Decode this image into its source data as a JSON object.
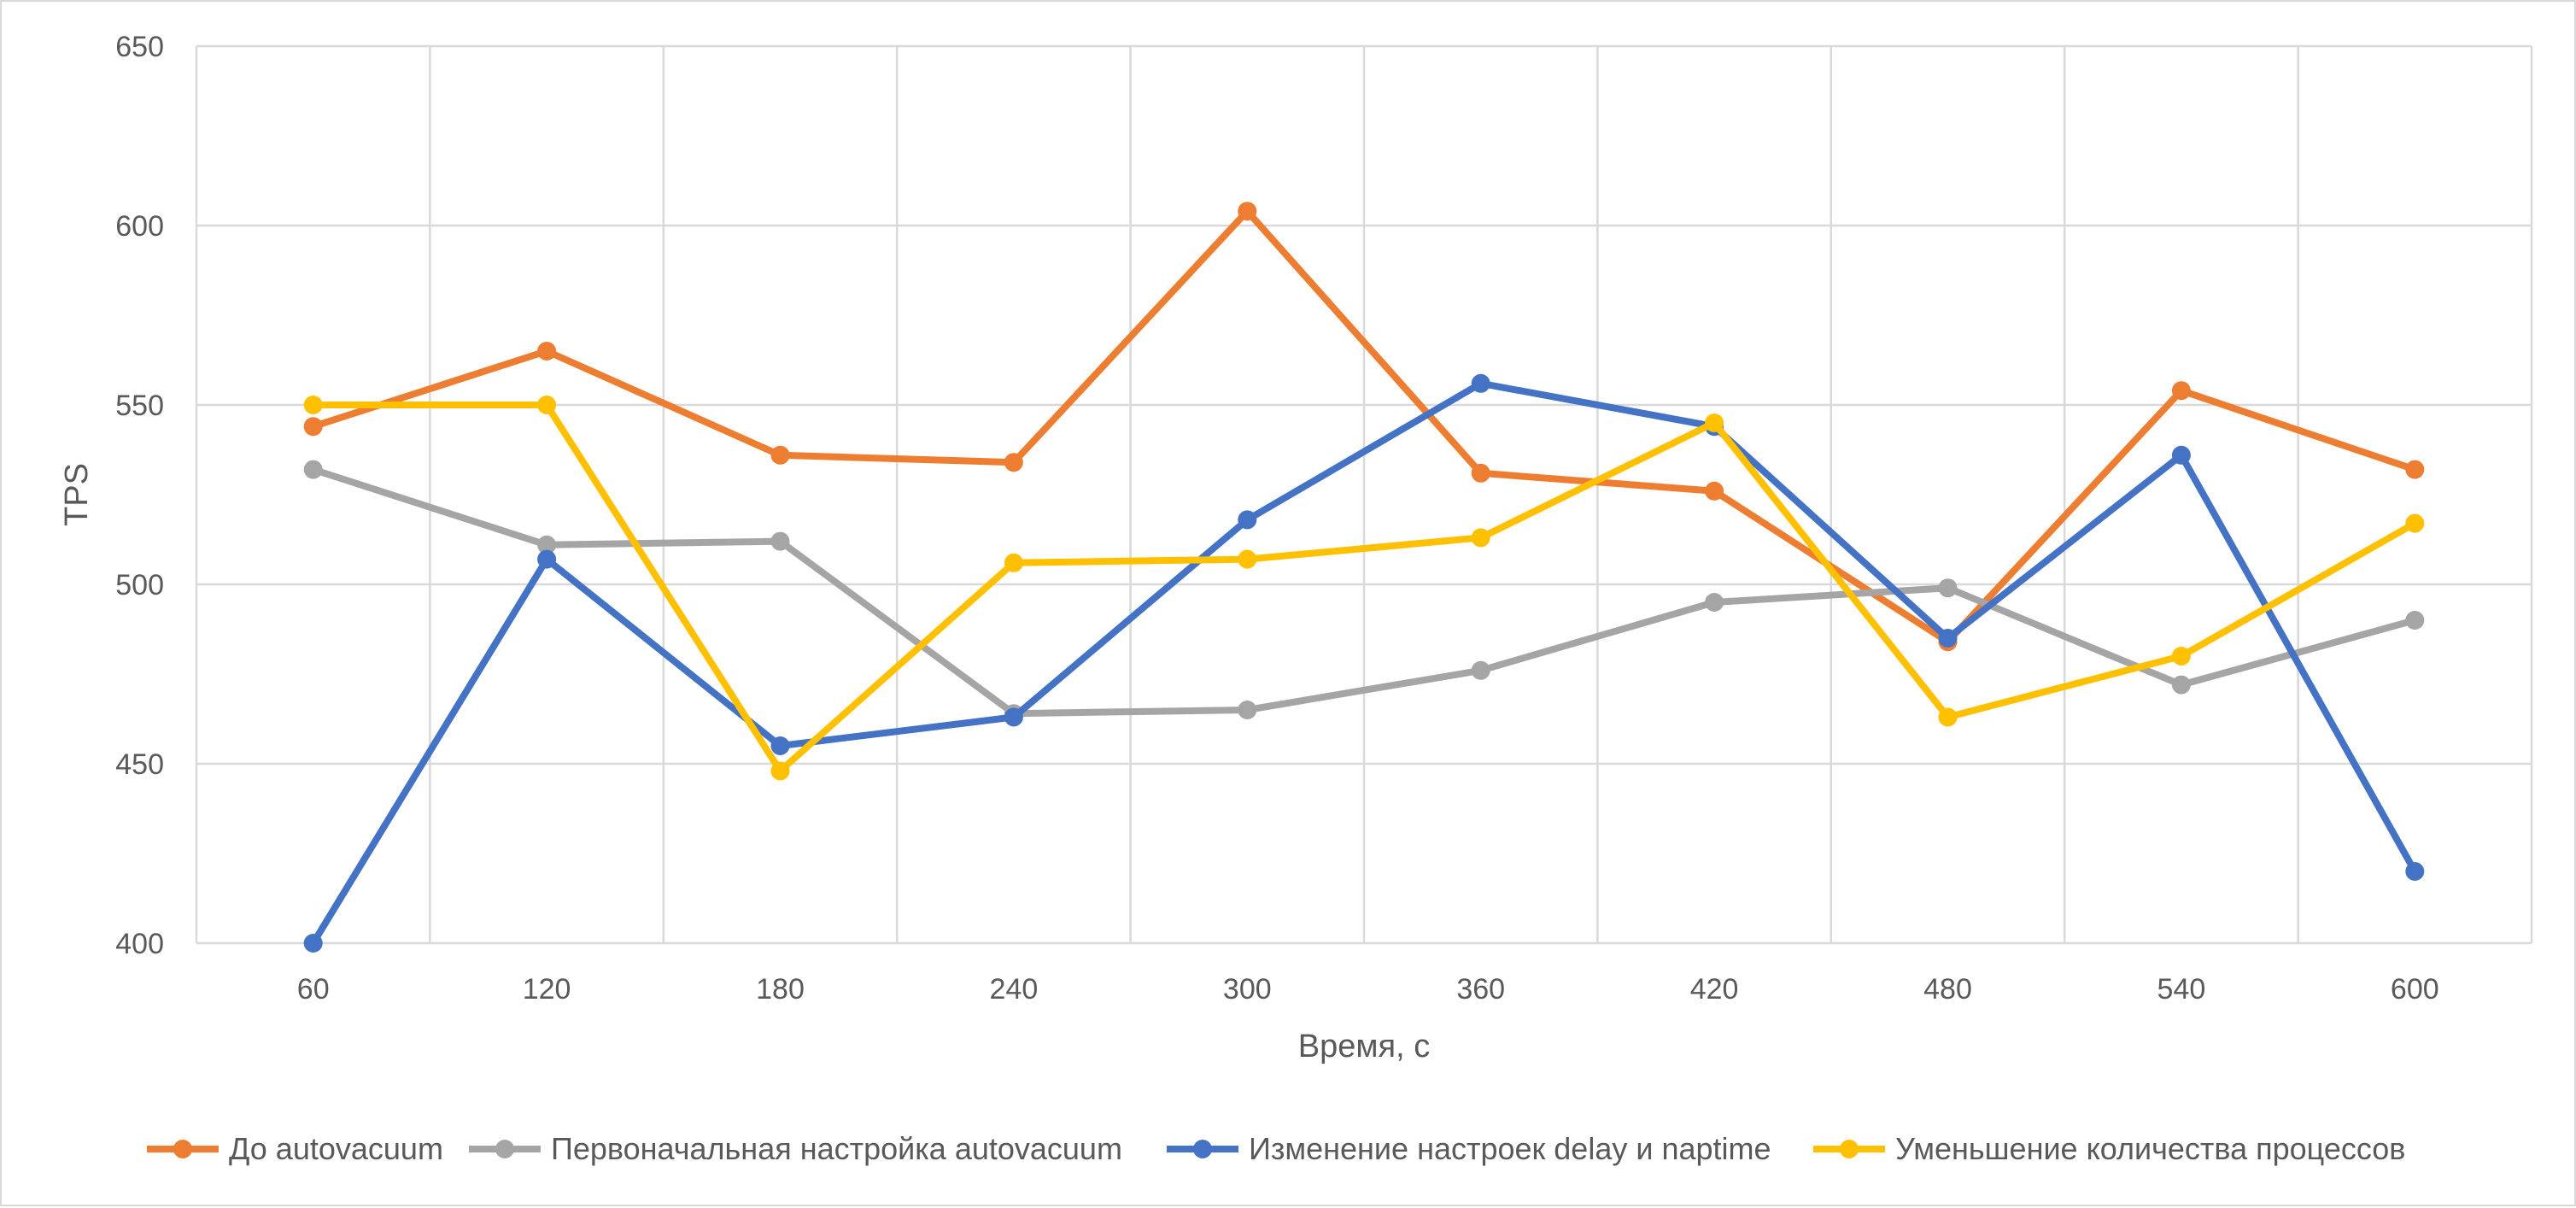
{
  "chart_data": {
    "type": "line",
    "xlabel": "Время, с",
    "ylabel": "TPS",
    "ylim": [
      400,
      650
    ],
    "yticks": [
      400,
      450,
      500,
      550,
      600,
      650
    ],
    "categories": [
      "60",
      "120",
      "180",
      "240",
      "300",
      "360",
      "420",
      "480",
      "540",
      "600"
    ],
    "grid": true,
    "legend_position": "bottom",
    "series": [
      {
        "name": "До autovacuum",
        "color": "#ED7D31",
        "values": [
          544,
          565,
          536,
          534,
          604,
          531,
          526,
          484,
          554,
          532
        ]
      },
      {
        "name": "Первоначальная настройка autovacuum",
        "color": "#A5A5A5",
        "values": [
          532,
          511,
          512,
          464,
          465,
          476,
          495,
          499,
          472,
          490
        ]
      },
      {
        "name": "Изменение настроек delay и naptime",
        "color": "#4472C4",
        "values": [
          400,
          507,
          455,
          463,
          518,
          556,
          544,
          485,
          536,
          420
        ]
      },
      {
        "name": "Уменьшение количества процессов",
        "color": "#FFC000",
        "values": [
          550,
          550,
          448,
          506,
          507,
          513,
          545,
          463,
          480,
          517
        ]
      }
    ]
  }
}
